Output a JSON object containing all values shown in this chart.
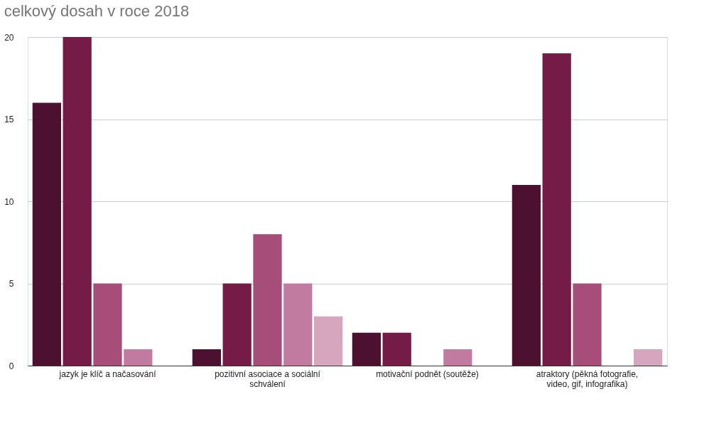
{
  "chart_data": {
    "type": "bar",
    "title": "celkový dosah v roce 2018",
    "categories": [
      "jazyk je klíč a načasování",
      "pozitivní asociace a sociální schválení",
      "motivační podnět (soutěže)",
      "atraktory (pěkná fotografie, video, gif, infografika)"
    ],
    "series": [
      {
        "color": "#4c1130",
        "values": [
          16,
          1,
          2,
          11
        ]
      },
      {
        "color": "#741b47",
        "values": [
          20,
          5,
          2,
          19
        ]
      },
      {
        "color": "#a64d79",
        "values": [
          5,
          8,
          null,
          5
        ]
      },
      {
        "color": "#c27ba0",
        "values": [
          1,
          5,
          1,
          null
        ]
      },
      {
        "color": "#d5a6bd",
        "values": [
          null,
          3,
          null,
          1
        ]
      }
    ],
    "ylim": [
      0,
      20
    ],
    "yticks": [
      0,
      5,
      10,
      15,
      20
    ],
    "grid": "y",
    "legend": false
  }
}
